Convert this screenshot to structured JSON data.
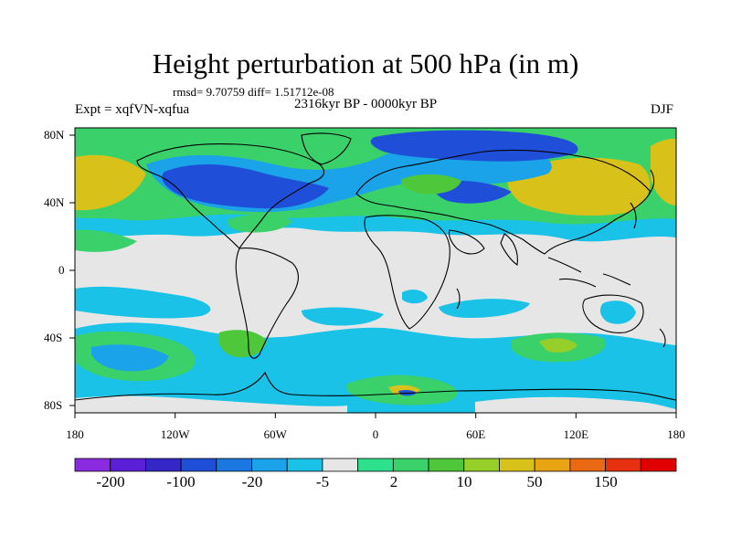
{
  "plot": {
    "title": "Height perturbation at 500 hPa (in m)",
    "stats": "rmsd= 9.70759 diff= 1.51712e-08",
    "period": "2316kyr BP - 0000kyr BP",
    "experiment": "Expt = xqfVN-xqfua",
    "season": "DJF"
  },
  "axes": {
    "lat_labels": [
      "80N",
      "40N",
      "0",
      "40S",
      "80S"
    ],
    "lon_labels": [
      "180",
      "120W",
      "60W",
      "0",
      "60E",
      "120E",
      "180"
    ]
  },
  "colorbar": {
    "labels": [
      "-200",
      "-100",
      "-20",
      "-5",
      "2",
      "10",
      "50",
      "150"
    ],
    "colors": [
      "#8a2be2",
      "#5a1fd6",
      "#3526c8",
      "#1f4fd8",
      "#1a78e0",
      "#1aa3e8",
      "#19c2e6",
      "#e6e6e6",
      "#2de08c",
      "#3bd16a",
      "#4ec83a",
      "#96cf2a",
      "#d8c21a",
      "#e9a414",
      "#ea6a14",
      "#e6300f",
      "#e00000"
    ]
  },
  "map_colors": {
    "ocean_base": "#e6e6e6",
    "coast": "#000000"
  }
}
